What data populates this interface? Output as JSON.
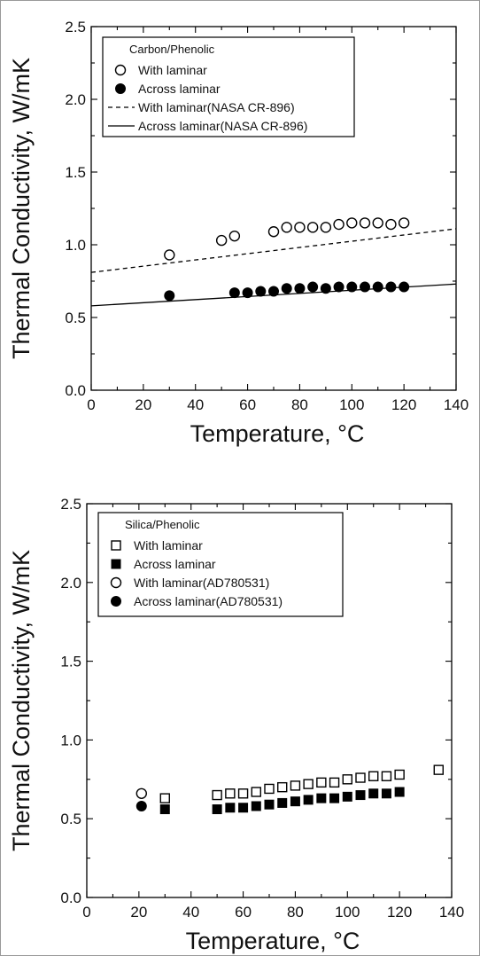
{
  "chart_data": [
    {
      "type": "scatter",
      "title": "",
      "xlabel": "Temperature, °C",
      "ylabel": "Thermal Conductivity, W/mK",
      "xlim": [
        0,
        140
      ],
      "ylim": [
        0.0,
        2.5
      ],
      "xticks": [
        "0",
        "20",
        "40",
        "60",
        "80",
        "100",
        "120",
        "140"
      ],
      "yticks": [
        "0.0",
        "0.5",
        "1.0",
        "1.5",
        "2.0",
        "2.5"
      ],
      "legend_title": "Carbon/Phenolic",
      "legend_position": "top-left",
      "grid": false,
      "series": [
        {
          "name": "With laminar",
          "kind": "scatter",
          "marker": "open-circle",
          "x": [
            30,
            50,
            55,
            70,
            75,
            80,
            85,
            90,
            95,
            100,
            105,
            110,
            115,
            120
          ],
          "y": [
            0.93,
            1.03,
            1.06,
            1.09,
            1.12,
            1.12,
            1.12,
            1.12,
            1.14,
            1.15,
            1.15,
            1.15,
            1.14,
            1.15
          ]
        },
        {
          "name": "Across laminar",
          "kind": "scatter",
          "marker": "filled-circle",
          "x": [
            30,
            55,
            60,
            65,
            70,
            75,
            80,
            85,
            90,
            95,
            100,
            105,
            110,
            115,
            120
          ],
          "y": [
            0.65,
            0.67,
            0.67,
            0.68,
            0.68,
            0.7,
            0.7,
            0.71,
            0.7,
            0.71,
            0.71,
            0.71,
            0.71,
            0.71,
            0.71
          ]
        },
        {
          "name": "With laminar(NASA CR-896)",
          "kind": "line",
          "style": "dashed",
          "x": [
            0,
            140
          ],
          "y": [
            0.81,
            1.11
          ]
        },
        {
          "name": "Across laminar(NASA CR-896)",
          "kind": "line",
          "style": "solid",
          "x": [
            0,
            140
          ],
          "y": [
            0.58,
            0.73
          ]
        }
      ]
    },
    {
      "type": "scatter",
      "title": "",
      "xlabel": "Temperature, °C",
      "ylabel": "Thermal Conductivity, W/mK",
      "xlim": [
        0,
        140
      ],
      "ylim": [
        0.0,
        2.5
      ],
      "xticks": [
        "0",
        "20",
        "40",
        "60",
        "80",
        "100",
        "120",
        "140"
      ],
      "yticks": [
        "0.0",
        "0.5",
        "1.0",
        "1.5",
        "2.0",
        "2.5"
      ],
      "legend_title": "Silica/Phenolic",
      "legend_position": "top-left",
      "grid": false,
      "series": [
        {
          "name": "With laminar",
          "kind": "scatter",
          "marker": "open-square",
          "x": [
            30,
            50,
            55,
            60,
            65,
            70,
            75,
            80,
            85,
            90,
            95,
            100,
            105,
            110,
            115,
            120,
            135
          ],
          "y": [
            0.63,
            0.65,
            0.66,
            0.66,
            0.67,
            0.69,
            0.7,
            0.71,
            0.72,
            0.73,
            0.73,
            0.75,
            0.76,
            0.77,
            0.77,
            0.78,
            0.81
          ]
        },
        {
          "name": "Across laminar",
          "kind": "scatter",
          "marker": "filled-square",
          "x": [
            30,
            50,
            55,
            60,
            65,
            70,
            75,
            80,
            85,
            90,
            95,
            100,
            105,
            110,
            115,
            120
          ],
          "y": [
            0.56,
            0.56,
            0.57,
            0.57,
            0.58,
            0.59,
            0.6,
            0.61,
            0.62,
            0.63,
            0.63,
            0.64,
            0.65,
            0.66,
            0.66,
            0.67
          ]
        },
        {
          "name": "With laminar(AD780531)",
          "kind": "scatter",
          "marker": "open-circle",
          "x": [
            21
          ],
          "y": [
            0.66
          ]
        },
        {
          "name": "Across laminar(AD780531)",
          "kind": "scatter",
          "marker": "filled-circle",
          "x": [
            21
          ],
          "y": [
            0.58
          ]
        }
      ]
    }
  ]
}
